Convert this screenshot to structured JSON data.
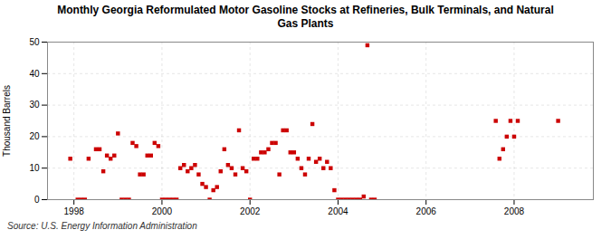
{
  "chart_data": {
    "type": "scatter",
    "title": "Monthly Georgia Reformulated Motor Gasoline Stocks at Refineries, Bulk Terminals, and Natural\nGas Plants",
    "ylabel": "Thousand Barrels",
    "caption": "Source: U.S. Energy Information Administration",
    "color": "#cc0000",
    "marker": "square",
    "grid": true,
    "xlim": [
      1997.4,
      2009.8
    ],
    "xticks": [
      1998,
      2000,
      2002,
      2004,
      2006,
      2008
    ],
    "ylim": [
      0,
      50
    ],
    "yticks": [
      0,
      10,
      20,
      30,
      40,
      50
    ],
    "x": [
      1997.917,
      1998.083,
      1998.167,
      1998.25,
      1998.333,
      1998.5,
      1998.583,
      1998.667,
      1998.75,
      1998.833,
      1998.917,
      1999.0,
      1999.083,
      1999.167,
      1999.25,
      1999.333,
      1999.417,
      1999.5,
      1999.583,
      1999.667,
      1999.75,
      1999.833,
      1999.917,
      2000.0,
      2000.083,
      2000.167,
      2000.25,
      2000.333,
      2000.417,
      2000.5,
      2000.583,
      2000.667,
      2000.75,
      2000.833,
      2000.917,
      2001.0,
      2001.083,
      2001.167,
      2001.25,
      2001.333,
      2001.417,
      2001.5,
      2001.583,
      2001.667,
      2001.75,
      2001.833,
      2001.917,
      2002.0,
      2002.083,
      2002.167,
      2002.25,
      2002.333,
      2002.417,
      2002.5,
      2002.583,
      2002.667,
      2002.75,
      2002.833,
      2002.917,
      2003.0,
      2003.083,
      2003.167,
      2003.25,
      2003.333,
      2003.417,
      2003.5,
      2003.583,
      2003.667,
      2003.75,
      2003.833,
      2003.917,
      2004.0,
      2004.083,
      2004.167,
      2004.25,
      2004.333,
      2004.417,
      2004.5,
      2004.583,
      2004.667,
      2004.75,
      2004.833,
      2007.583,
      2007.667,
      2007.75,
      2007.833,
      2007.917,
      2008.0,
      2008.083,
      2009.0
    ],
    "values": [
      13,
      0,
      0,
      0,
      13,
      16,
      16,
      9,
      14,
      13,
      14,
      21,
      0,
      0,
      0,
      18,
      17,
      8,
      8,
      14,
      14,
      18,
      17,
      0,
      0,
      0,
      0,
      0,
      10,
      11,
      9,
      10,
      11,
      8,
      5,
      4,
      0,
      3,
      4,
      9,
      16,
      11,
      10,
      8,
      22,
      10,
      9,
      0,
      13,
      13,
      15,
      15,
      16,
      18,
      18,
      8,
      22,
      22,
      15,
      15,
      13,
      10,
      8,
      13,
      24,
      12,
      13,
      10,
      12,
      10,
      3,
      0,
      0,
      0,
      0,
      0,
      0,
      0,
      1,
      49,
      0,
      0,
      25,
      13,
      16,
      20,
      25,
      20,
      25,
      25
    ]
  }
}
